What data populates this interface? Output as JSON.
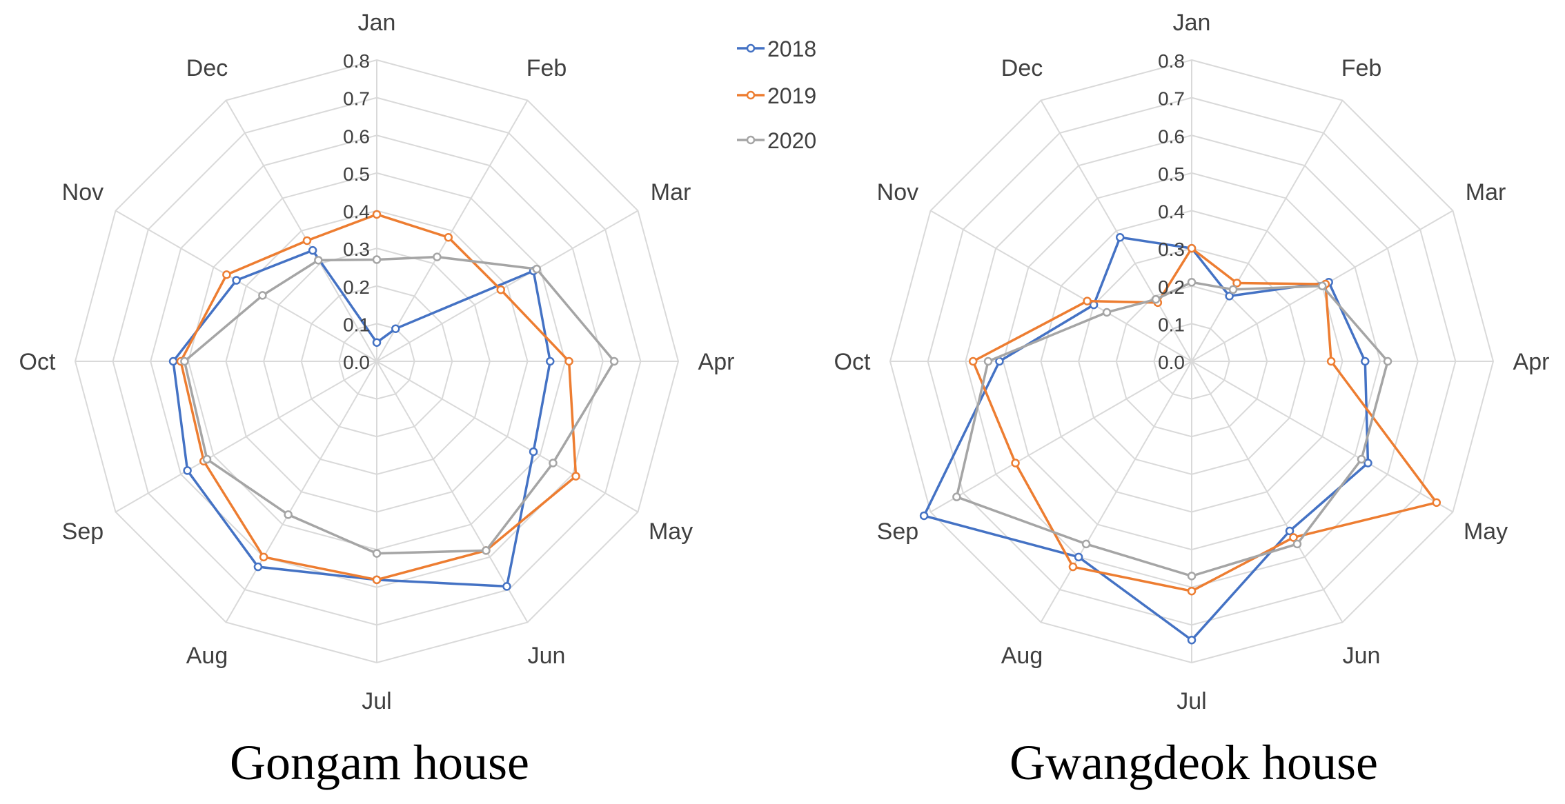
{
  "chart_data": [
    {
      "type": "radar",
      "title": "Gongam house",
      "categories": [
        "Jan",
        "Feb",
        "Mar",
        "Apr",
        "May",
        "Jun",
        "Jul",
        "Aug",
        "Sep",
        "Oct",
        "Nov",
        "Dec"
      ],
      "rlim": [
        0,
        0.8
      ],
      "ticks": [
        0.0,
        0.1,
        0.2,
        0.3,
        0.4,
        0.5,
        0.6,
        0.7,
        0.8
      ],
      "tick_labels": [
        "0.0",
        "0.1",
        "0.2",
        "0.3",
        "0.4",
        "0.5",
        "0.6",
        "0.7",
        "0.8"
      ],
      "grid": true,
      "legend": "top-right",
      "series": [
        {
          "name": "2018",
          "color": "#4472C4",
          "values": [
            0.05,
            0.1,
            0.48,
            0.46,
            0.48,
            0.69,
            0.58,
            0.63,
            0.58,
            0.54,
            0.43,
            0.34
          ]
        },
        {
          "name": "2019",
          "color": "#ED7D31",
          "values": [
            0.39,
            0.38,
            0.38,
            0.51,
            0.61,
            0.58,
            0.58,
            0.6,
            0.53,
            0.52,
            0.46,
            0.37
          ]
        },
        {
          "name": "2020",
          "color": "#A5A5A5",
          "values": [
            0.27,
            0.32,
            0.49,
            0.63,
            0.54,
            0.58,
            0.51,
            0.47,
            0.52,
            0.51,
            0.35,
            0.31
          ]
        }
      ]
    },
    {
      "type": "radar",
      "title": "Gwangdeok house",
      "categories": [
        "Jan",
        "Feb",
        "Mar",
        "Apr",
        "May",
        "Jun",
        "Jul",
        "Aug",
        "Sep",
        "Oct",
        "Nov",
        "Dec"
      ],
      "rlim": [
        0,
        0.8
      ],
      "ticks": [
        0.0,
        0.1,
        0.2,
        0.3,
        0.4,
        0.5,
        0.6,
        0.7,
        0.8
      ],
      "tick_labels": [
        "0.0",
        "0.1",
        "0.2",
        "0.3",
        "0.4",
        "0.5",
        "0.6",
        "0.7",
        "0.8"
      ],
      "grid": true,
      "legend": "none",
      "series": [
        {
          "name": "2018",
          "color": "#4472C4",
          "values": [
            0.3,
            0.2,
            0.42,
            0.46,
            0.54,
            0.52,
            0.74,
            0.6,
            0.82,
            0.51,
            0.3,
            0.38
          ]
        },
        {
          "name": "2019",
          "color": "#ED7D31",
          "values": [
            0.3,
            0.24,
            0.41,
            0.37,
            0.75,
            0.54,
            0.61,
            0.63,
            0.54,
            0.58,
            0.32,
            0.18
          ]
        },
        {
          "name": "2020",
          "color": "#A5A5A5",
          "values": [
            0.21,
            0.22,
            0.4,
            0.52,
            0.52,
            0.56,
            0.57,
            0.56,
            0.72,
            0.54,
            0.26,
            0.19
          ]
        }
      ]
    }
  ],
  "legend_labels": [
    "2018",
    "2019",
    "2020"
  ]
}
